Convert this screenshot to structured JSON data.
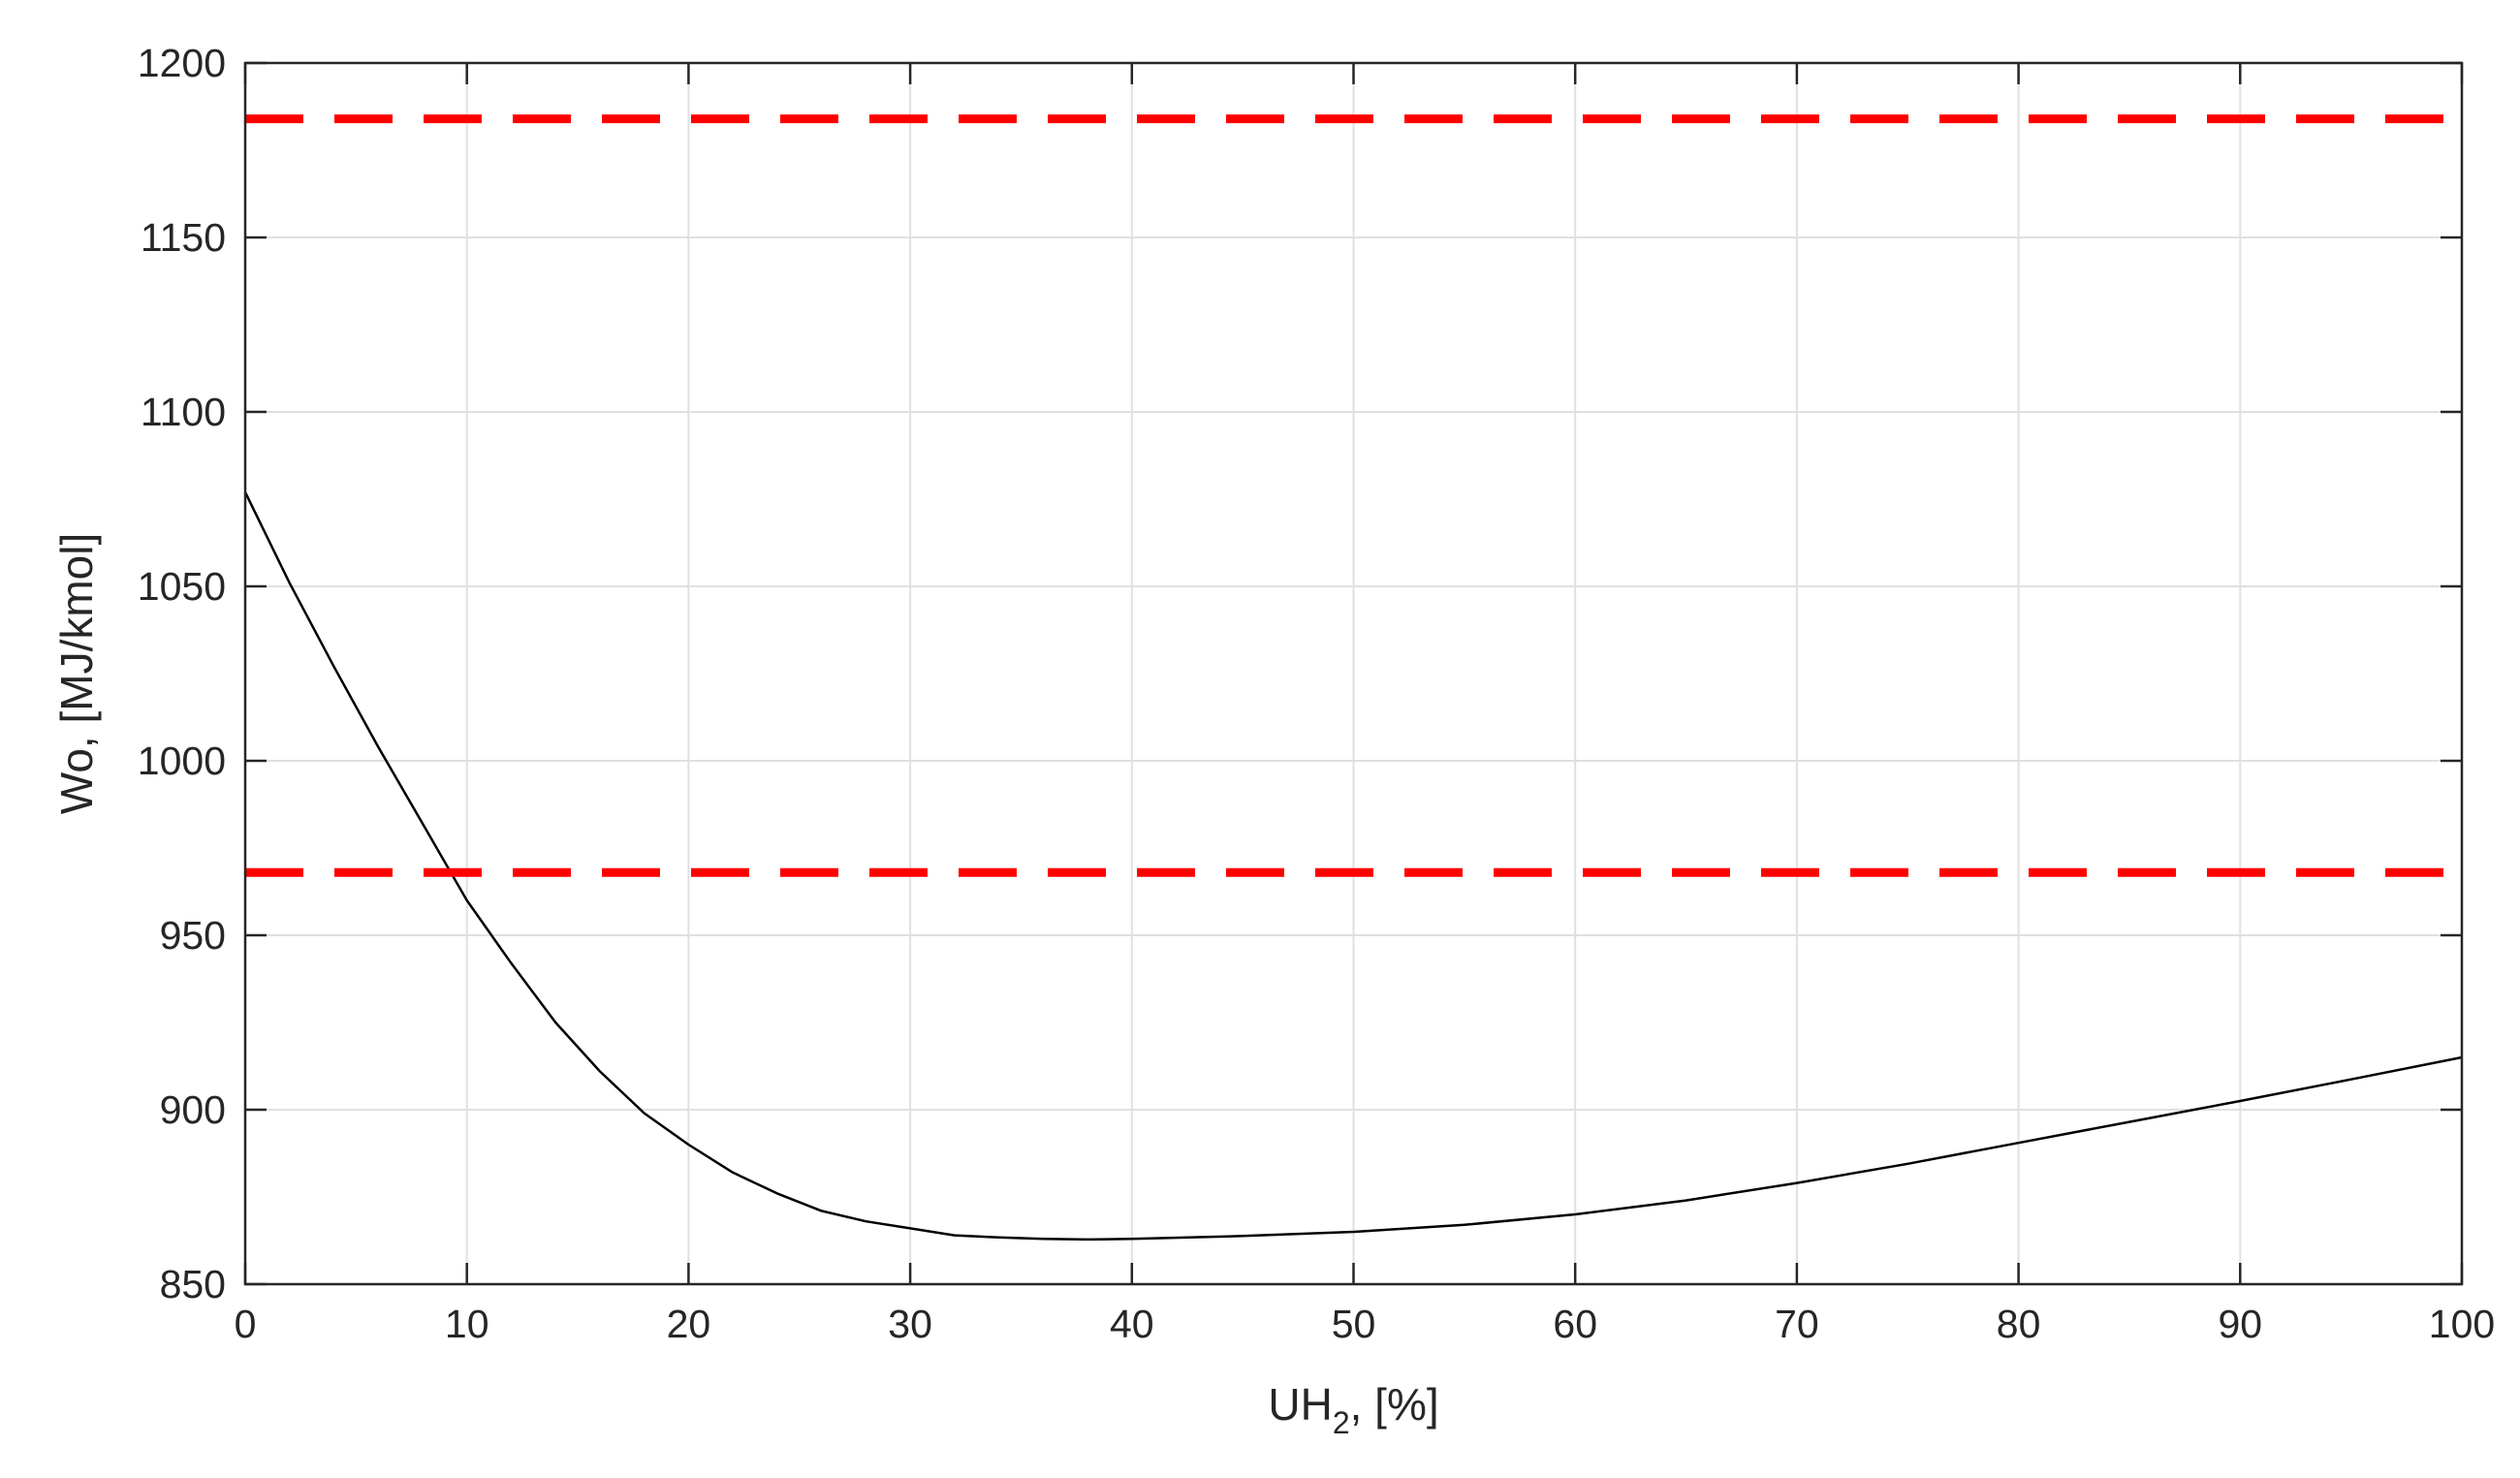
{
  "chart_data": {
    "type": "line",
    "xlabel": "UH",
    "xlabel_sub": "2",
    "xlabel_suffix": ", [%]",
    "ylabel": "Wo, [MJ/kmol]",
    "xlim": [
      0,
      100
    ],
    "ylim": [
      850,
      1200
    ],
    "xticks": [
      0,
      10,
      20,
      30,
      40,
      50,
      60,
      70,
      80,
      90,
      100
    ],
    "yticks": [
      850,
      900,
      950,
      1000,
      1050,
      1100,
      1150,
      1200
    ],
    "grid": true,
    "series": [
      {
        "color": "#000000",
        "style": "solid",
        "x": [
          0,
          2,
          4,
          6,
          8,
          10,
          12,
          14,
          16,
          18,
          20,
          22,
          24,
          26,
          28,
          30,
          32,
          34,
          36,
          38,
          40,
          45,
          50,
          55,
          60,
          65,
          70,
          75,
          80,
          85,
          90,
          95,
          100
        ],
        "y": [
          1077,
          1051,
          1027,
          1004,
          982,
          960,
          942,
          925,
          911,
          899,
          890,
          882,
          876,
          871,
          868,
          866,
          864,
          863.4,
          863,
          862.8,
          863,
          863.8,
          865,
          867,
          870,
          874,
          879,
          884.5,
          890.5,
          896.5,
          902.5,
          908.7,
          915
        ]
      },
      {
        "color": "#ff0000",
        "style": "dashed",
        "x": [
          0,
          100
        ],
        "y": [
          1184,
          1184
        ]
      },
      {
        "color": "#ff0000",
        "style": "dashed",
        "x": [
          0,
          100
        ],
        "y": [
          968,
          968
        ]
      }
    ]
  }
}
